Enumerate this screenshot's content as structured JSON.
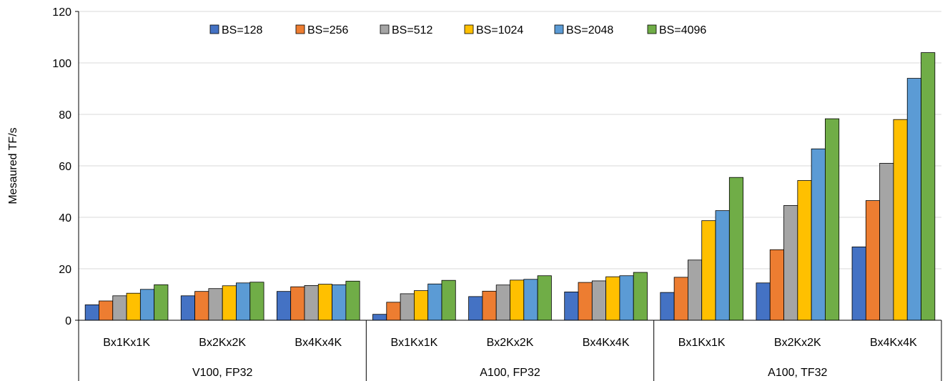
{
  "chart_data": {
    "type": "bar",
    "ylabel": "Mesaured TF/s",
    "ylim": [
      0,
      120
    ],
    "yticks": [
      "0",
      "20",
      "40",
      "60",
      "80",
      "100",
      "120"
    ],
    "grid": true,
    "legend_position": "top",
    "groups": [
      "V100, FP32",
      "A100, FP32",
      "A100, TF32"
    ],
    "categories": [
      "Bx1Kx1K",
      "Bx2Kx2K",
      "Bx4Kx4K"
    ],
    "series": [
      {
        "name": "BS=128",
        "color": "#4472C4",
        "values": [
          [
            6.0,
            9.5,
            11.2
          ],
          [
            2.3,
            9.2,
            11.0
          ],
          [
            10.8,
            14.5,
            28.5
          ]
        ]
      },
      {
        "name": "BS=256",
        "color": "#ED7D31",
        "values": [
          [
            7.5,
            11.2,
            13.0
          ],
          [
            7.0,
            11.3,
            14.7
          ],
          [
            16.7,
            27.4,
            46.5
          ]
        ]
      },
      {
        "name": "BS=512",
        "color": "#A5A5A5",
        "values": [
          [
            9.5,
            12.3,
            13.5
          ],
          [
            10.3,
            13.7,
            15.3
          ],
          [
            23.4,
            44.6,
            61.0
          ]
        ]
      },
      {
        "name": "BS=1024",
        "color": "#FFC000",
        "values": [
          [
            10.5,
            13.4,
            14.0
          ],
          [
            11.5,
            15.6,
            16.9
          ],
          [
            38.7,
            54.3,
            78.0
          ]
        ]
      },
      {
        "name": "BS=2048",
        "color": "#5B9BD5",
        "values": [
          [
            12.0,
            14.5,
            13.8
          ],
          [
            14.1,
            15.9,
            17.3
          ],
          [
            42.6,
            66.6,
            94.0
          ]
        ]
      },
      {
        "name": "BS=4096",
        "color": "#70AD47",
        "values": [
          [
            13.8,
            14.8,
            15.2
          ],
          [
            15.5,
            17.3,
            18.6
          ],
          [
            55.5,
            78.3,
            104.0
          ]
        ]
      }
    ]
  }
}
